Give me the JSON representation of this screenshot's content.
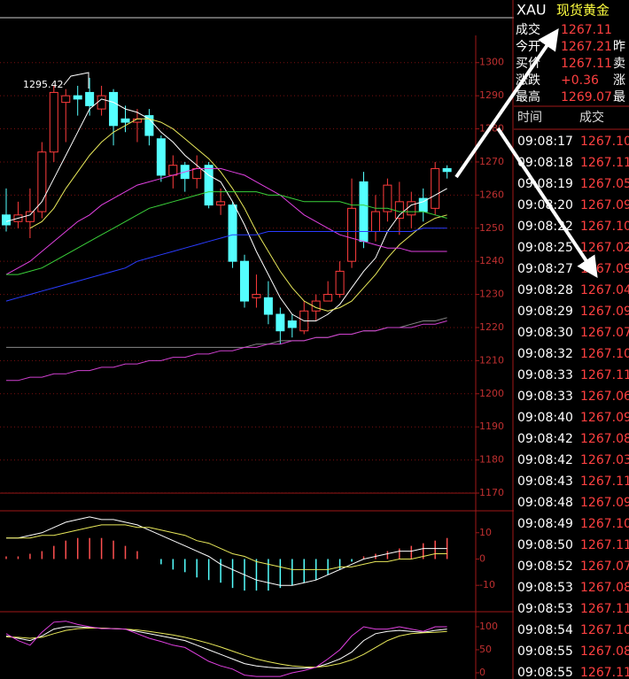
{
  "chart_data": [
    {
      "type": "candlestick",
      "annotation": "1295.42",
      "open": [
        1254,
        1252,
        1252,
        1255,
        1273,
        1288,
        1290,
        1291,
        1286,
        1291,
        1283,
        1282,
        1284,
        1277,
        1266,
        1269,
        1265,
        1269,
        1257,
        1257,
        1240,
        1229,
        1229,
        1224,
        1222,
        1219,
        1225,
        1228,
        1230,
        1240,
        1264,
        1249,
        1255,
        1253,
        1254,
        1259,
        1256,
        1268
      ],
      "high": [
        1262,
        1258,
        1262,
        1276,
        1293,
        1292,
        1293,
        1295.42,
        1293,
        1292,
        1287,
        1286,
        1286,
        1278,
        1272,
        1270,
        1272,
        1270,
        1262,
        1258,
        1242,
        1236,
        1234,
        1226,
        1224,
        1228,
        1230,
        1234,
        1240,
        1265,
        1267,
        1260,
        1265,
        1264,
        1261,
        1262,
        1270,
        1269
      ],
      "low": [
        1249,
        1250,
        1247,
        1253,
        1270,
        1276,
        1284,
        1284,
        1284,
        1275,
        1279,
        1276,
        1275,
        1264,
        1262,
        1261,
        1262,
        1256,
        1254,
        1238,
        1226,
        1226,
        1221,
        1215,
        1217,
        1218,
        1222,
        1228,
        1229,
        1238,
        1244,
        1246,
        1252,
        1248,
        1250,
        1252,
        1254,
        1265
      ],
      "close": [
        1251,
        1254,
        1255,
        1273,
        1291,
        1290,
        1289,
        1287,
        1290,
        1281,
        1282,
        1283,
        1278,
        1266,
        1269,
        1265,
        1268,
        1257,
        1258,
        1240,
        1228,
        1230,
        1224,
        1219,
        1220,
        1225,
        1228,
        1230,
        1237,
        1256,
        1246,
        1255,
        1263,
        1258,
        1258,
        1255,
        1268,
        1267.11
      ],
      "up_color": "#ff3c3c",
      "down_color": "#54ffff",
      "lines": [
        {
          "color": "#ffffff",
          "values": [
            1252,
            1253,
            1254,
            1258,
            1265,
            1272,
            1279,
            1286,
            1289,
            1288,
            1286,
            1285,
            1283,
            1279,
            1276,
            1272,
            1269,
            1266,
            1264,
            1258,
            1251,
            1243,
            1236,
            1229,
            1224,
            1222,
            1222,
            1224,
            1227,
            1232,
            1237,
            1241,
            1249,
            1254,
            1257,
            1258,
            1260,
            1262
          ]
        },
        {
          "color": "#e8e85a",
          "values": [
            null,
            null,
            1250,
            1252,
            1256,
            1262,
            1267,
            1272,
            1276,
            1279,
            1281,
            1283,
            1283,
            1282,
            1280,
            1277,
            1274,
            1271,
            1267,
            1262,
            1256,
            1249,
            1243,
            1237,
            1232,
            1228,
            1226,
            1225,
            1226,
            1228,
            1232,
            1236,
            1241,
            1245,
            1248,
            1251,
            1253,
            1254
          ]
        },
        {
          "color": "#e040e0",
          "values": [
            1236,
            1238,
            1240,
            1243,
            1246,
            1249,
            1252,
            1254,
            1257,
            1259,
            1261,
            1263,
            1264,
            1265,
            1266,
            1267,
            1268,
            1268,
            1268,
            1267,
            1266,
            1264,
            1262,
            1260,
            1257,
            1254,
            1252,
            1250,
            1248,
            1247,
            1246,
            1245,
            1244,
            1244,
            1243,
            1243,
            1243,
            1243
          ]
        },
        {
          "color": "#3ad13a",
          "values": [
            1236,
            1236,
            1237,
            1238,
            1240,
            1242,
            1244,
            1246,
            1248,
            1250,
            1252,
            1254,
            1256,
            1257,
            1258,
            1259,
            1260,
            1261,
            1261,
            1261,
            1261,
            1261,
            1260,
            1260,
            1259,
            1258,
            1258,
            1258,
            1258,
            1257,
            1257,
            1256,
            1256,
            1255,
            1255,
            1255,
            1254,
            1253
          ]
        },
        {
          "color": "#2a3cff",
          "values": [
            1228,
            1229,
            1230,
            1231,
            1232,
            1233,
            1234,
            1235,
            1236,
            1237,
            1238,
            1240,
            1241,
            1242,
            1243,
            1244,
            1245,
            1246,
            1247,
            1248,
            1248,
            1248,
            1249,
            1249,
            1249,
            1249,
            1249,
            1249,
            1249,
            1249,
            1249,
            1249,
            1249,
            1249,
            1249,
            1250,
            1250,
            1250
          ]
        },
        {
          "color": "#888888",
          "values": [
            1214,
            1214,
            1214,
            1214,
            1214,
            1214,
            1214,
            1214,
            1214,
            1214,
            1214,
            1214,
            1214,
            1214,
            1214,
            1214,
            1214,
            1214,
            1214,
            1214,
            1214,
            1215,
            1215,
            1216,
            1216,
            1216,
            1217,
            1217,
            1218,
            1218,
            1219,
            1219,
            1220,
            1220,
            1221,
            1222,
            1222,
            1223
          ]
        },
        {
          "color": "#d040d0",
          "values": [
            1204,
            1204,
            1205,
            1205,
            1206,
            1206,
            1207,
            1207,
            1208,
            1208,
            1209,
            1209,
            1210,
            1210,
            1211,
            1211,
            1212,
            1212,
            1213,
            1213,
            1214,
            1214,
            1215,
            1215,
            1216,
            1216,
            1217,
            1217,
            1218,
            1218,
            1219,
            1219,
            1220,
            1220,
            1220,
            1221,
            1221,
            1222
          ]
        }
      ],
      "ylim": [
        1170,
        1313.3
      ],
      "yticks": [
        1170,
        1180,
        1190,
        1200,
        1210,
        1220,
        1230,
        1240,
        1250,
        1260,
        1270,
        1280,
        1290,
        1300
      ],
      "grid": true
    },
    {
      "type": "macd",
      "histogram": [
        1,
        1,
        2,
        3,
        5,
        7,
        8,
        8,
        8,
        7,
        5,
        3,
        0,
        -2,
        -4,
        -5,
        -7,
        -8,
        -9,
        -11,
        -12,
        -12,
        -12,
        -11,
        -10,
        -9,
        -8,
        -6,
        -4,
        -1,
        1,
        2,
        3,
        4,
        5,
        6,
        7,
        8
      ],
      "up_color": "#ff5050",
      "down_color": "#54ffff",
      "lines": [
        {
          "color": "#ffffff",
          "values": [
            8,
            8,
            9,
            10,
            12,
            14,
            15,
            16,
            15,
            15,
            14,
            13,
            11,
            9,
            7,
            5,
            3,
            1,
            -2,
            -4,
            -6,
            -8,
            -9,
            -10,
            -10,
            -9,
            -8,
            -6,
            -4,
            -2,
            0,
            1,
            2,
            3,
            3,
            4,
            4,
            4
          ]
        },
        {
          "color": "#e8e85a",
          "values": [
            8,
            8,
            8,
            9,
            9,
            10,
            11,
            12,
            13,
            13,
            13,
            12,
            12,
            11,
            10,
            9,
            7,
            6,
            4,
            2,
            1,
            -1,
            -2,
            -3,
            -4,
            -4,
            -4,
            -4,
            -3,
            -3,
            -2,
            -1,
            -1,
            0,
            0,
            1,
            2,
            2
          ]
        }
      ],
      "ylim": [
        -19.7,
        18
      ],
      "yticks": [
        -10,
        0,
        10
      ]
    },
    {
      "type": "line",
      "lines": [
        {
          "color": "#ffffff",
          "values": [
            80,
            75,
            70,
            80,
            95,
            100,
            100,
            98,
            97,
            96,
            95,
            90,
            85,
            80,
            75,
            70,
            60,
            50,
            40,
            30,
            20,
            15,
            12,
            10,
            10,
            10,
            12,
            20,
            30,
            45,
            70,
            85,
            90,
            92,
            90,
            88,
            92,
            95
          ]
        },
        {
          "color": "#e8e85a",
          "values": [
            78,
            77,
            75,
            77,
            85,
            92,
            96,
            97,
            97,
            96,
            95,
            93,
            90,
            86,
            82,
            77,
            71,
            64,
            56,
            47,
            38,
            30,
            24,
            19,
            15,
            13,
            12,
            15,
            20,
            28,
            40,
            55,
            70,
            80,
            85,
            87,
            88,
            90
          ]
        },
        {
          "color": "#e040e0",
          "values": [
            85,
            70,
            60,
            88,
            110,
            112,
            105,
            100,
            96,
            96,
            95,
            85,
            75,
            68,
            60,
            55,
            40,
            25,
            15,
            8,
            -5,
            -8,
            -8,
            -8,
            0,
            5,
            12,
            30,
            50,
            80,
            100,
            95,
            95,
            100,
            95,
            90,
            100,
            100
          ]
        }
      ],
      "ylim": [
        -13.5,
        128.8
      ],
      "yticks": [
        0,
        50,
        100
      ]
    }
  ],
  "quote_panel": {
    "symbol": "XAU",
    "name": "现货黄金",
    "rows": [
      [
        "成交",
        "1267.11"
      ],
      [
        "今开",
        "1267.21",
        "昨"
      ],
      [
        "买价",
        "1267.11",
        "卖"
      ],
      [
        "涨跌",
        "+0.36",
        "涨"
      ],
      [
        "最高",
        "1269.07",
        "最"
      ]
    ]
  },
  "tick_table": {
    "headers": [
      "时间",
      "成交"
    ],
    "rows": [
      [
        "09:08:17",
        "1267.10"
      ],
      [
        "09:08:18",
        "1267.11"
      ],
      [
        "09:08:19",
        "1267.05"
      ],
      [
        "09:08:20",
        "1267.09"
      ],
      [
        "09:08:22",
        "1267.10"
      ],
      [
        "09:08:25",
        "1267.02"
      ],
      [
        "09:08:27",
        "1267.09"
      ],
      [
        "09:08:28",
        "1267.04"
      ],
      [
        "09:08:29",
        "1267.09"
      ],
      [
        "09:08:30",
        "1267.07"
      ],
      [
        "09:08:32",
        "1267.10"
      ],
      [
        "09:08:33",
        "1267.11"
      ],
      [
        "09:08:33",
        "1267.06"
      ],
      [
        "09:08:40",
        "1267.09"
      ],
      [
        "09:08:42",
        "1267.08"
      ],
      [
        "09:08:42",
        "1267.03"
      ],
      [
        "09:08:43",
        "1267.11"
      ],
      [
        "09:08:48",
        "1267.09"
      ],
      [
        "09:08:49",
        "1267.10"
      ],
      [
        "09:08:50",
        "1267.11"
      ],
      [
        "09:08:52",
        "1267.07"
      ],
      [
        "09:08:53",
        "1267.08"
      ],
      [
        "09:08:53",
        "1267.11"
      ],
      [
        "09:08:54",
        "1267.10"
      ],
      [
        "09:08:55",
        "1267.08"
      ],
      [
        "09:08:55",
        "1267.11"
      ]
    ]
  }
}
